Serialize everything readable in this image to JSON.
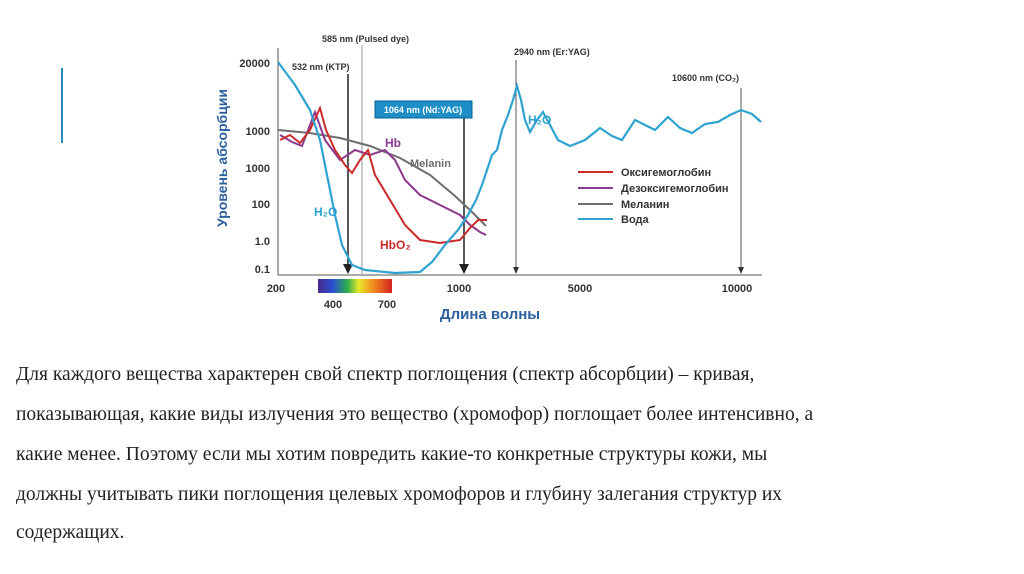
{
  "figure": {
    "y_axis_title": "Уровень абсорбции",
    "x_axis_title": "Длина волны",
    "y_tick_labels": [
      "20000",
      "1000",
      "1000",
      "100",
      "1.0",
      "0.1"
    ],
    "x_tick_labels": [
      "200",
      "1000",
      "5000",
      "10000"
    ],
    "spectrum_labels": [
      "400",
      "700"
    ],
    "lasers": [
      "585 nm (Pulsed dye)",
      "532 nm (KTP)",
      "1064 nm (Nd:YAG)",
      "2940 nm (Er:YAG)",
      "10600 nm (CO₂)"
    ],
    "curve_labels": [
      "Hb",
      "Melanin",
      "HbO₂",
      "H₂O",
      "H₂O"
    ],
    "legend": [
      "Оксигемоглобин",
      "Дезоксигемоглобин",
      "Меланин",
      "Вода"
    ]
  },
  "text": {
    "lines": [
      "Для каждого вещества характерен свой спектр поглощения (спектр абсорбции) – кривая,",
      "показывающая, какие виды излучения это вещество (хромофор) поглощает более интенсивно, а",
      "какие менее. Поэтому если мы хотим повредить какие-то конкретные структуры кожи, мы",
      "должны учитывать пики поглощения целевых хромофоров и глубину залегания структур их",
      "содержащих."
    ]
  }
}
